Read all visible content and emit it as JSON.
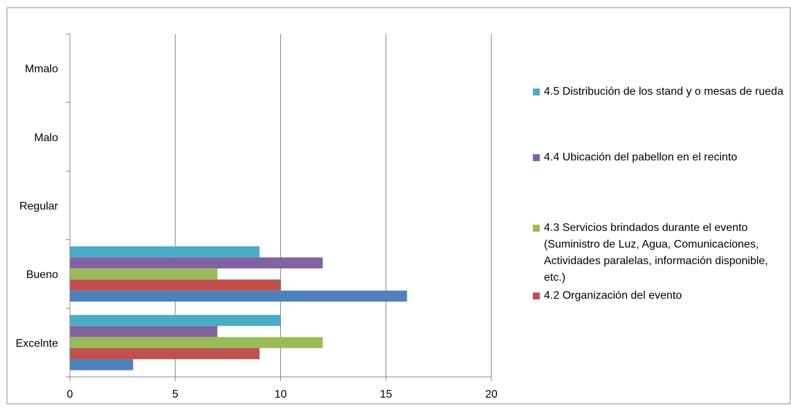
{
  "chart_data": {
    "type": "bar",
    "orientation": "horizontal",
    "categories": [
      "Excelnte",
      "Bueno",
      "Regular",
      "Malo",
      "Mmalo"
    ],
    "xlim": [
      0,
      20
    ],
    "x_ticks": [
      "0",
      "5",
      "10",
      "15",
      "20"
    ],
    "grid": "vertical",
    "legend_position": "right",
    "series": [
      {
        "name": "",
        "color": "#4F81BD",
        "values": [
          3,
          16,
          0,
          0,
          0
        ]
      },
      {
        "name": "4.2 Organización del evento",
        "color": "#C0504D",
        "values": [
          9,
          10,
          0,
          0,
          0
        ]
      },
      {
        "name": "4.3 Servicios brindados durante el evento (Suministro de Luz, Agua, Comunicaciones, Actividades paralelas, información disponible, etc.)",
        "color": "#9BBB59",
        "values": [
          12,
          7,
          0,
          0,
          0
        ]
      },
      {
        "name": "4.4 Ubicación del pabellon en el recinto",
        "color": "#8064A2",
        "values": [
          7,
          12,
          0,
          0,
          0
        ]
      },
      {
        "name": "4.5 Distribución de los stand y o mesas de rueda",
        "color": "#4BACC6",
        "values": [
          10,
          9,
          0,
          0,
          0
        ]
      }
    ]
  }
}
